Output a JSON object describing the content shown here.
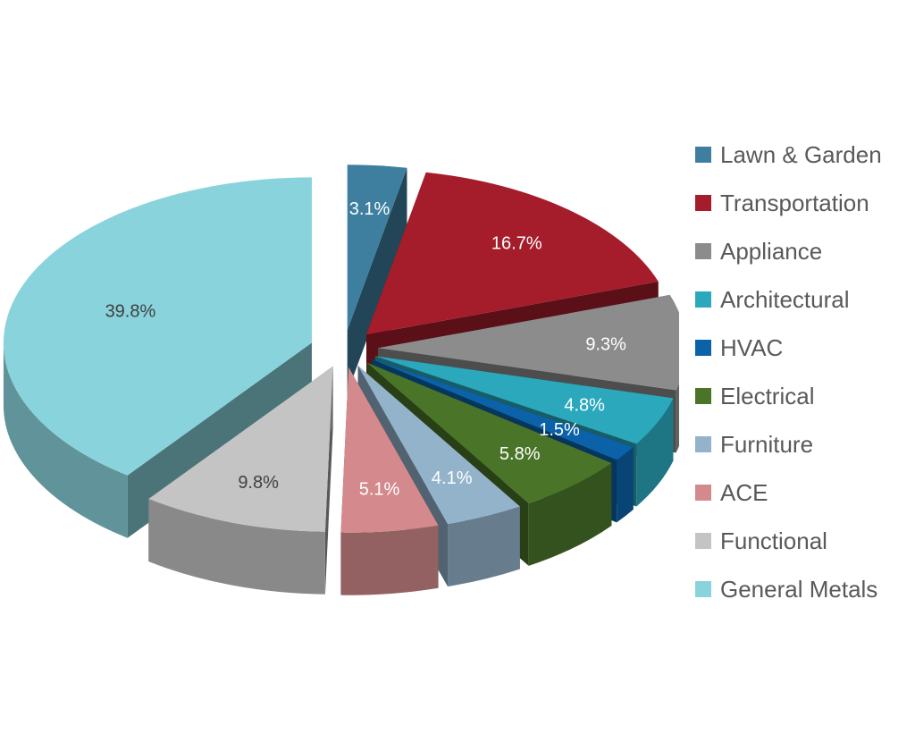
{
  "chart_data": {
    "type": "pie",
    "title": "",
    "legend_position": "right",
    "slices": [
      {
        "name": "Lawn & Garden",
        "value": 3.1,
        "label": "3.1%",
        "color": "#3E7FA0",
        "label_color": "#ffffff"
      },
      {
        "name": "Transportation",
        "value": 16.7,
        "label": "16.7%",
        "color": "#A51C2A",
        "label_color": "#ffffff"
      },
      {
        "name": "Appliance",
        "value": 9.3,
        "label": "9.3%",
        "color": "#8C8C8C",
        "label_color": "#ffffff"
      },
      {
        "name": "Architectural",
        "value": 4.8,
        "label": "4.8%",
        "color": "#2BA8BC",
        "label_color": "#ffffff"
      },
      {
        "name": "HVAC",
        "value": 1.5,
        "label": "1.5%",
        "color": "#0B62A8",
        "label_color": "#ffffff"
      },
      {
        "name": "Electrical",
        "value": 5.8,
        "label": "5.8%",
        "color": "#4A7529",
        "label_color": "#ffffff"
      },
      {
        "name": "Furniture",
        "value": 4.1,
        "label": "4.1%",
        "color": "#93B3CB",
        "label_color": "#ffffff"
      },
      {
        "name": "ACE",
        "value": 5.1,
        "label": "5.1%",
        "color": "#D48A8C",
        "label_color": "#ffffff"
      },
      {
        "name": "Functional",
        "value": 9.8,
        "label": "9.8%",
        "color": "#C4C4C4",
        "label_color": "#404040"
      },
      {
        "name": "General Metals",
        "value": 39.8,
        "label": "39.8%",
        "color": "#89D3DC",
        "label_color": "#404040"
      }
    ]
  }
}
